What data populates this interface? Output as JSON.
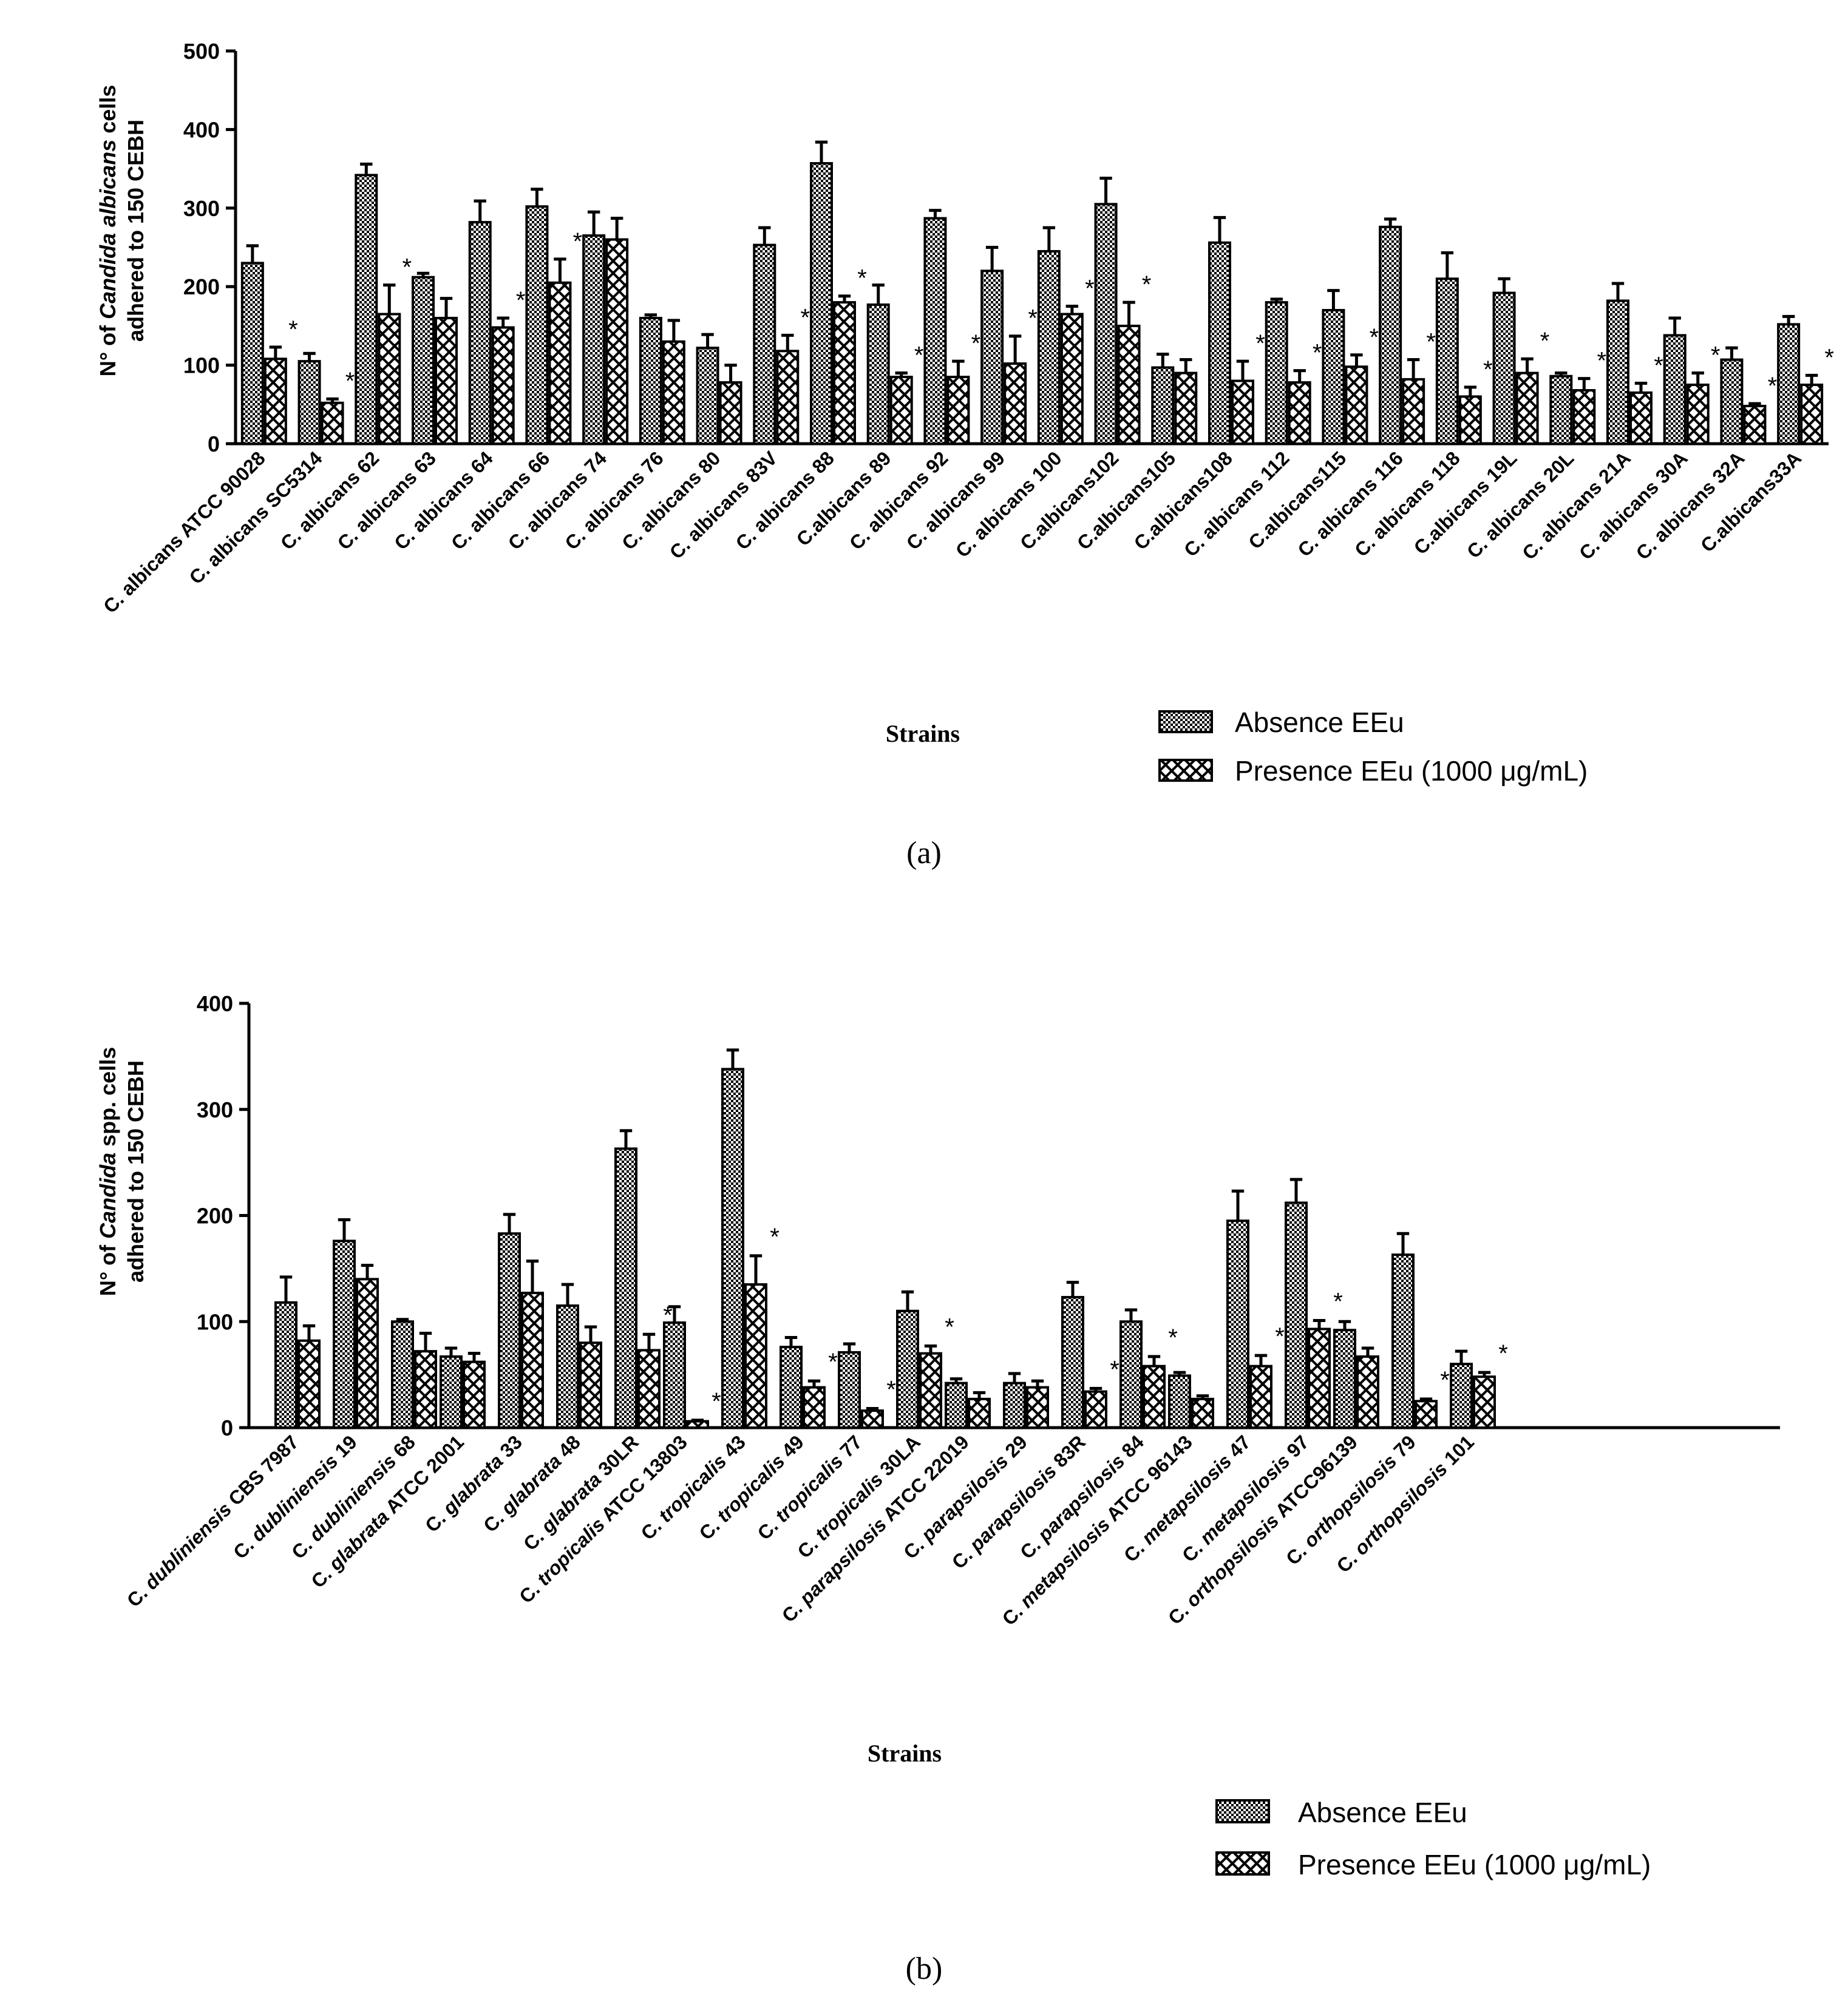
{
  "legend": {
    "absence": "Absence EEu",
    "presence": "Presence EEu (1000 μg/mL)"
  },
  "chart_data": [
    {
      "type": "bar",
      "panel_label": "(a)",
      "ylabel_prefix": "N° of ",
      "ylabel_italic": "Candida albicans",
      "ylabel_suffix": " cells",
      "ylabel_line2": "adhered to 150 CEBH",
      "xlabel": "Strains",
      "ylim": [
        0,
        500
      ],
      "yticks": [
        0,
        100,
        200,
        300,
        400,
        500
      ],
      "categories": [
        "C. albicans ATCC 90028",
        "C. albicans SC5314",
        "C. albicans 62",
        "C. albicans 63",
        "C. albicans 64",
        "C. albicans 66",
        "C. albicans 74",
        "C. albicans 76",
        "C. albicans 80",
        "C. albicans 83V",
        "C. albicans 88",
        "C.albicans 89",
        "C. albicans 92",
        "C. albicans 99",
        "C. albicans 100",
        "C.albicans102",
        "C.albicans105",
        "C.albicans108",
        "C. albicans 112",
        "C.albicans115",
        "C. albicans 116",
        "C. albicans 118",
        "C.albicans 19L",
        "C. albicans 20L",
        "C. albicans 21A",
        "C. albicans 30A",
        "C. albicans 32A",
        "C.albicans33A"
      ],
      "series": [
        {
          "name": "Absence EEu",
          "values": [
            230,
            105,
            342,
            212,
            282,
            302,
            265,
            160,
            122,
            253,
            357,
            177,
            287,
            220,
            245,
            305,
            97,
            256,
            180,
            170,
            276,
            210,
            192,
            86,
            182,
            138,
            107,
            152
          ],
          "errors": [
            22,
            10,
            14,
            5,
            27,
            22,
            30,
            4,
            17,
            22,
            27,
            25,
            10,
            30,
            30,
            33,
            17,
            32,
            4,
            25,
            10,
            33,
            18,
            4,
            22,
            22,
            15,
            10
          ]
        },
        {
          "name": "Presence EEu (1000 μg/mL)",
          "values": [
            108,
            52,
            165,
            160,
            148,
            205,
            260,
            130,
            78,
            118,
            180,
            85,
            85,
            102,
            165,
            150,
            90,
            80,
            78,
            98,
            82,
            60,
            90,
            68,
            65,
            75,
            48,
            75
          ],
          "errors": [
            15,
            5,
            37,
            25,
            12,
            30,
            27,
            27,
            22,
            20,
            8,
            5,
            20,
            35,
            10,
            30,
            17,
            25,
            15,
            15,
            25,
            12,
            18,
            15,
            12,
            15,
            3,
            12
          ]
        }
      ],
      "significant": [
        true,
        true,
        true,
        false,
        true,
        true,
        false,
        false,
        false,
        true,
        true,
        true,
        true,
        true,
        true,
        true,
        false,
        true,
        true,
        true,
        true,
        true,
        true,
        true,
        true,
        true,
        true,
        true
      ]
    },
    {
      "type": "bar",
      "panel_label": "(b)",
      "ylabel_prefix": "N° of ",
      "ylabel_italic": "Candida",
      "ylabel_suffix": " spp. cells",
      "ylabel_line2": "adhered to 150 CEBH",
      "xlabel": "Strains",
      "ylim": [
        0,
        400
      ],
      "yticks": [
        0,
        100,
        200,
        300,
        400
      ],
      "groups": [
        {
          "species": "dubliniensis",
          "items": [
            {
              "label": "CBS 7987",
              "absence": 118,
              "abs_err": 24,
              "presence": 82,
              "pre_err": 14,
              "sig": false
            },
            {
              "label": "19",
              "absence": 176,
              "abs_err": 20,
              "presence": 140,
              "pre_err": 13,
              "sig": false
            },
            {
              "label": "68",
              "absence": 100,
              "abs_err": 2,
              "presence": 72,
              "pre_err": 17,
              "sig": false
            }
          ]
        },
        {
          "species": "glabrata",
          "items": [
            {
              "label": "ATCC 2001",
              "absence": 67,
              "abs_err": 8,
              "presence": 62,
              "pre_err": 8,
              "sig": false
            },
            {
              "label": "33",
              "absence": 183,
              "abs_err": 18,
              "presence": 127,
              "pre_err": 30,
              "sig": false
            },
            {
              "label": "48",
              "absence": 115,
              "abs_err": 20,
              "presence": 80,
              "pre_err": 15,
              "sig": false
            },
            {
              "label": "30LR",
              "absence": 263,
              "abs_err": 17,
              "presence": 73,
              "pre_err": 15,
              "sig": true
            }
          ]
        },
        {
          "species": "tropicalis",
          "items": [
            {
              "label": "ATCC 13803",
              "absence": 99,
              "abs_err": 15,
              "presence": 6,
              "pre_err": 1,
              "sig": true
            },
            {
              "label": "43",
              "absence": 338,
              "abs_err": 18,
              "presence": 135,
              "pre_err": 27,
              "sig": true
            },
            {
              "label": "49",
              "absence": 76,
              "abs_err": 9,
              "presence": 38,
              "pre_err": 6,
              "sig": true
            },
            {
              "label": "77",
              "absence": 71,
              "abs_err": 8,
              "presence": 16,
              "pre_err": 2,
              "sig": true
            },
            {
              "label": "30LA",
              "absence": 110,
              "abs_err": 18,
              "presence": 70,
              "pre_err": 7,
              "sig": true
            }
          ]
        },
        {
          "species": "parapsilosis",
          "items": [
            {
              "label": "ATCC 22019",
              "absence": 42,
              "abs_err": 4,
              "presence": 27,
              "pre_err": 6,
              "sig": false
            },
            {
              "label": " 29",
              "absence": 42,
              "abs_err": 9,
              "presence": 38,
              "pre_err": 6,
              "sig": false
            },
            {
              "label": " 83R",
              "absence": 123,
              "abs_err": 14,
              "presence": 34,
              "pre_err": 3,
              "sig": true
            },
            {
              "label": " 84",
              "absence": 100,
              "abs_err": 11,
              "presence": 58,
              "pre_err": 9,
              "sig": true
            }
          ]
        },
        {
          "species": "metapsilosis",
          "items": [
            {
              "label": "ATCC 96143",
              "absence": 49,
              "abs_err": 3,
              "presence": 27,
              "pre_err": 3,
              "sig": false
            },
            {
              "label": "47",
              "absence": 195,
              "abs_err": 28,
              "presence": 58,
              "pre_err": 10,
              "sig": true
            },
            {
              "label": "97",
              "absence": 212,
              "abs_err": 22,
              "presence": 93,
              "pre_err": 8,
              "sig": true
            }
          ]
        },
        {
          "species": "orthopsilosis",
          "items": [
            {
              "label": "ATCC96139",
              "absence": 92,
              "abs_err": 8,
              "presence": 67,
              "pre_err": 8,
              "sig": false
            },
            {
              "label": "79",
              "absence": 163,
              "abs_err": 20,
              "presence": 25,
              "pre_err": 2,
              "sig": true
            },
            {
              "label": "101",
              "absence": 60,
              "abs_err": 12,
              "presence": 48,
              "pre_err": 4,
              "sig": true
            }
          ]
        }
      ]
    }
  ]
}
